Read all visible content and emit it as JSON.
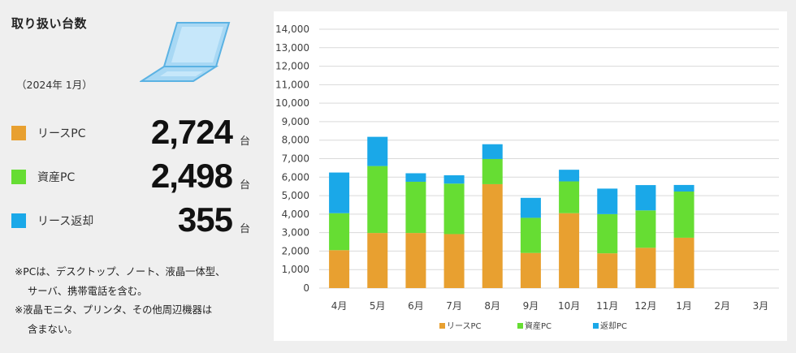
{
  "panel": {
    "title": "取り扱い台数",
    "period": "（2024年 1月）",
    "unit": "台",
    "stats": [
      {
        "label": "リースPC",
        "value": "2,724",
        "color": "#e8a030"
      },
      {
        "label": "資産PC",
        "value": "2,498",
        "color": "#66dd33"
      },
      {
        "label": "リース返却",
        "value": "355",
        "color": "#1aa8e8"
      }
    ],
    "notes": [
      "※PCは、デスクトップ、ノート、液晶一体型、",
      "サーバ、携帯電話を含む。",
      "※液晶モニタ、プリンタ、その他周辺機器は",
      "含まない。"
    ],
    "laptop_icon": "laptop-icon"
  },
  "chart_data": {
    "type": "bar",
    "stacked": true,
    "categories": [
      "4月",
      "5月",
      "6月",
      "7月",
      "8月",
      "9月",
      "10月",
      "11月",
      "12月",
      "1月",
      "2月",
      "3月"
    ],
    "series": [
      {
        "name": "リースPC",
        "color": "#e8a030",
        "values": [
          2050,
          2980,
          2980,
          2920,
          5620,
          1900,
          4050,
          1880,
          2180,
          2724,
          null,
          null
        ]
      },
      {
        "name": "資産PC",
        "color": "#66dd33",
        "values": [
          2000,
          3620,
          2770,
          2730,
          1360,
          1900,
          1720,
          2120,
          2020,
          2498,
          null,
          null
        ]
      },
      {
        "name": "返却PC",
        "color": "#1aa8e8",
        "values": [
          2200,
          1580,
          460,
          450,
          800,
          1080,
          630,
          1380,
          1370,
          355,
          null,
          null
        ]
      }
    ],
    "legend_labels": [
      "リースPC",
      "資産PC",
      "返却PC"
    ],
    "ylim": [
      0,
      14000
    ],
    "yticks": [
      0,
      1000,
      2000,
      3000,
      4000,
      5000,
      6000,
      7000,
      8000,
      9000,
      10000,
      11000,
      12000,
      13000,
      14000
    ],
    "ytick_labels": [
      "0",
      "1,000",
      "2,000",
      "3,000",
      "4,000",
      "5,000",
      "6,000",
      "7,000",
      "8,000",
      "9,000",
      "10,000",
      "11,000",
      "12,000",
      "13,000",
      "14,000"
    ],
    "grid": true,
    "legend_position": "bottom"
  }
}
